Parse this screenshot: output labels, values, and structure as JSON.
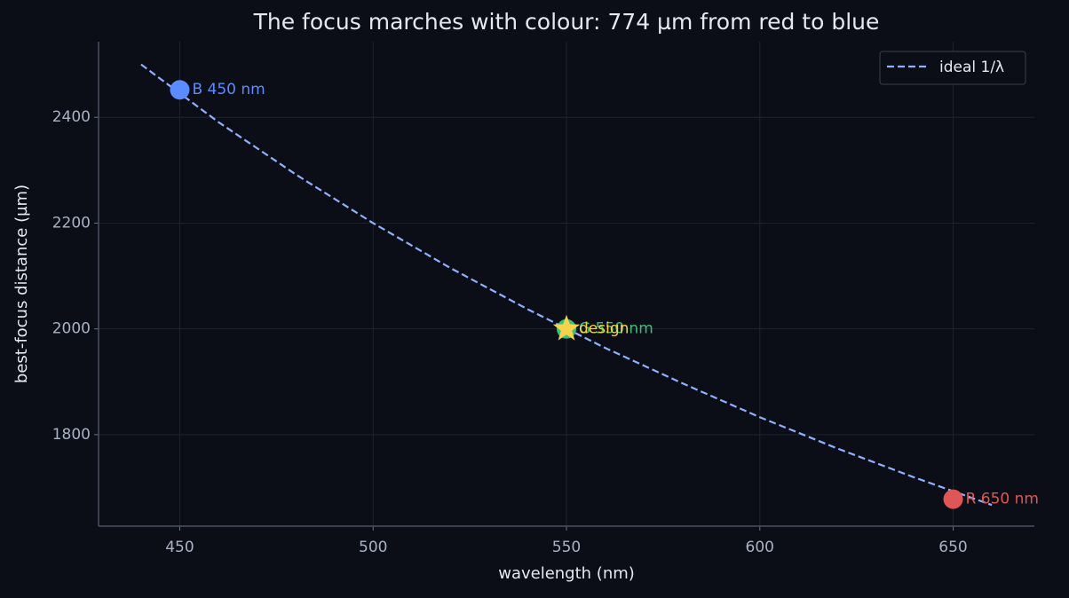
{
  "chart_data": {
    "type": "scatter",
    "title": "The focus marches with colour: 774 µm from red to blue",
    "x_label": "wavelength (nm)",
    "y_label": "best-focus distance (µm)",
    "xlim": [
      429,
      671
    ],
    "ylim": [
      1627,
      2543
    ],
    "xticks": [
      450,
      500,
      550,
      600,
      650
    ],
    "yticks": [
      1800,
      2000,
      2200,
      2400
    ],
    "grid": true,
    "legend": "upper right",
    "series": [
      {
        "name": "ideal 1/λ",
        "color": "#8fb0ff",
        "style": "dashed",
        "x": [
          440,
          460,
          480,
          500,
          520,
          540,
          560,
          580,
          600,
          620,
          640,
          660
        ],
        "values": [
          2500,
          2391,
          2292,
          2200,
          2115,
          2037,
          1964,
          1897,
          1833,
          1774,
          1719,
          1667
        ]
      }
    ],
    "points": [
      {
        "label": "B 450 nm",
        "x": 450,
        "value": 2452,
        "color": "#5b8cff"
      },
      {
        "label": "G 550 nm",
        "x": 550,
        "value": 2000,
        "color": "#3dbf7a"
      },
      {
        "label": "R 650 nm",
        "x": 650,
        "value": 1678,
        "color": "#e05555"
      }
    ],
    "design": {
      "label": "design",
      "x": 550,
      "value": 2000,
      "color": "#f5d34a"
    }
  }
}
